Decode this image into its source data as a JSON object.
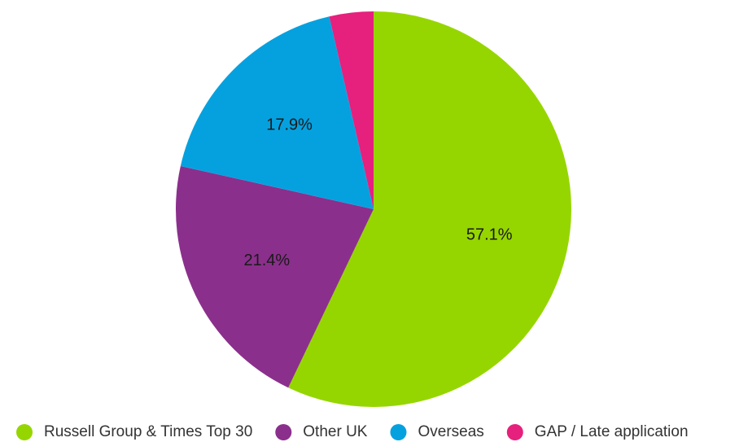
{
  "chart_data": {
    "type": "pie",
    "categories": [
      "Russell Group & Times Top 30",
      "Other UK",
      "Overseas",
      "GAP / Late application"
    ],
    "values": [
      57.1,
      21.4,
      17.9,
      3.6
    ],
    "data_labels": [
      "57.1%",
      "21.4%",
      "17.9%",
      ""
    ],
    "colors": [
      "#96d600",
      "#8b2f8c",
      "#05a1df",
      "#e6207d"
    ],
    "start_angle_deg": 0,
    "direction": "clockwise",
    "legend": {
      "placement": "bottom",
      "entries": [
        "Russell Group & Times Top 30",
        "Other UK",
        "Overseas",
        "GAP / Late application"
      ]
    },
    "title": ""
  }
}
